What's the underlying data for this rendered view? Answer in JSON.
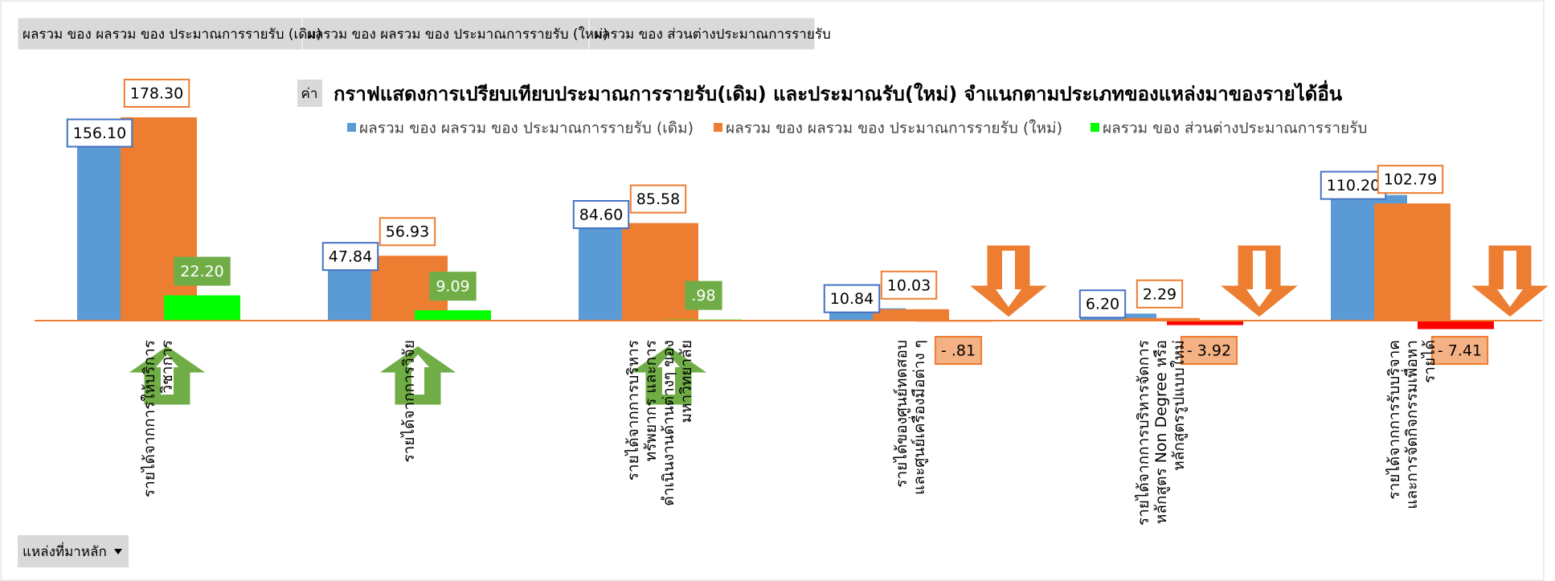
{
  "field_buttons": [
    "ผลรวม ของ ผลรวม ของ ประมาณการรายรับ (เดิม)",
    "ผลรวม ของ ผลรวม ของ ประมาณการรายรับ (ใหม่)",
    "ผลรวม ของ ส่วนต่างประมาณการรายรับ"
  ],
  "values_button": "ค่า",
  "filter_button": "แหล่งที่มาหลัก",
  "chart_data": {
    "type": "bar",
    "title": "กราฟแสดงการเปรียบเทียบประมาณการรายรับ(เดิม) และประมาณรับ(ใหม่) จำแนกตามประเภทของแหล่งมาของรายได้อื่น",
    "categories": [
      [
        "รายได้จากการให้บริการ",
        "วิชาการ"
      ],
      [
        "รายได้จากการวิจัย"
      ],
      [
        "รายได้จากการบริหาร",
        "ทรัพยากร และการ",
        "ดำเนินงานด้านต่างๆ ของ",
        "มหาวิทยาลัย"
      ],
      [
        "รายได้ของศูนย์ทดสอบ",
        "และศูนย์เครื่องมือต่าง ๆ"
      ],
      [
        "รายได้จากการบริหารจัดการ",
        "หลักสูตร Non Degree หรือ",
        "หลักสูตรรูปแบบใหม่"
      ],
      [
        "รายได้จากการรับบริจาค",
        "และการจัดกิจกรรมเพื่อหา",
        "รายได้"
      ]
    ],
    "series": [
      {
        "name": "ผลรวม ของ ผลรวม ของ ประมาณการรายรับ (เดิม)",
        "color": "#5b9bd5",
        "values": [
          156.1,
          47.84,
          84.6,
          10.84,
          6.2,
          110.2
        ],
        "value_labels": [
          "156.10",
          "47.84",
          "84.60",
          "10.84",
          "6.20",
          "110.20"
        ]
      },
      {
        "name": "ผลรวม ของ ผลรวม ของ ประมาณการรายรับ (ใหม่)",
        "color": "#ed7d31",
        "values": [
          178.3,
          56.93,
          85.58,
          10.03,
          2.29,
          102.79
        ],
        "value_labels": [
          "178.30",
          "56.93",
          "85.58",
          "10.03",
          "2.29",
          "102.79"
        ]
      },
      {
        "name": "ผลรวม ของ ส่วนต่างประมาณการรายรับ",
        "color": "#00ff00",
        "negative_color": "#ff0000",
        "values": [
          22.2,
          9.09,
          0.98,
          -0.81,
          -3.92,
          -7.41
        ],
        "value_labels": [
          "22.20",
          "9.09",
          ".98",
          "- .81",
          "- 3.92",
          "- 7.41"
        ]
      }
    ],
    "ylim": [
      -30,
      180
    ]
  }
}
